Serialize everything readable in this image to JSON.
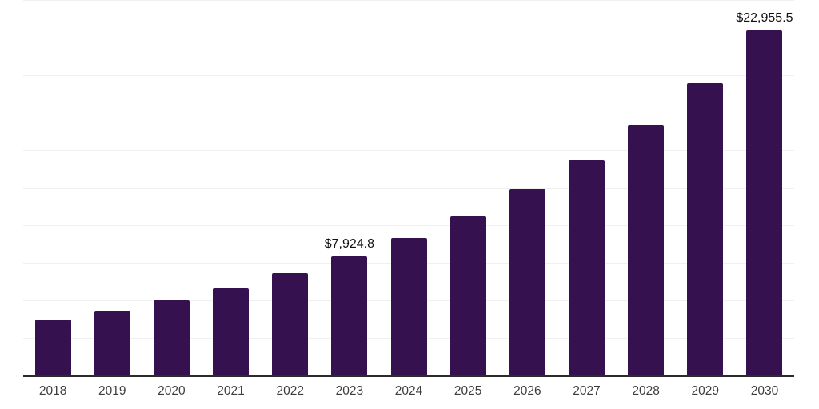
{
  "chart_data": {
    "type": "bar",
    "title": "",
    "xlabel": "",
    "ylabel": "",
    "categories": [
      "2018",
      "2019",
      "2020",
      "2021",
      "2022",
      "2023",
      "2024",
      "2025",
      "2026",
      "2027",
      "2028",
      "2029",
      "2030"
    ],
    "values": [
      3720,
      4310,
      5000,
      5810,
      6810,
      7924.8,
      9130,
      10580,
      12400,
      14360,
      16650,
      19480,
      22955.5
    ],
    "data_labels": [
      {
        "category": "2023",
        "text": "$7,924.8"
      },
      {
        "category": "2030",
        "text": "$22,955.5"
      }
    ],
    "ylim": [
      0,
      25000
    ],
    "gridline_step": 2500,
    "grid": "horizontal",
    "legend": "none",
    "y_axis_labels_visible": false
  },
  "colors": {
    "bar": "#361150",
    "gridline": "#f0f0f0",
    "axis_line": "#2b2b2b",
    "tick_label": "#3d3d3d",
    "data_label": "#111111",
    "background": "#ffffff"
  }
}
